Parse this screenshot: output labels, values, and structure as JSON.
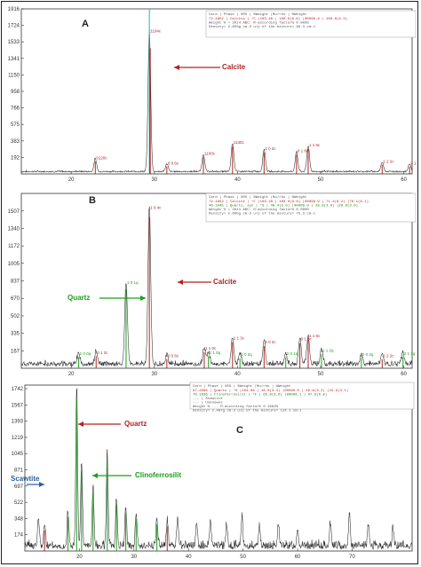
{
  "colors": {
    "pattern_line": "#2b2b2b",
    "calcite": "#b22222",
    "quartz": "#19a019",
    "clinoferrosilit": "#19a019",
    "scawtite": "#3060a0",
    "header_text": "#555555",
    "header_red": "#c02020",
    "header_green": "#208020",
    "axis": "#333333",
    "border_blue": "#4060b0",
    "cyan_peak": "#20b0c0"
  },
  "chart_data": [
    {
      "type": "line",
      "panel_label": "A",
      "xlim": [
        14,
        61
      ],
      "x_ticks": [
        20,
        30,
        40,
        50,
        60
      ],
      "y_ticks": [
        192,
        383,
        575,
        766,
        958,
        1150,
        1341,
        1533,
        1724,
        1916
      ],
      "ylim": [
        0,
        1916
      ],
      "grid": false,
      "annotations": [
        {
          "text": "Calcite",
          "color": "calcite"
        }
      ],
      "info_box": {
        "header": "Card  |  Phase  |  XRS  |  %Weight  |Mu/rho  |  %Weight",
        "lines": [
          "72-1652 | Calcite | *C |103.28 | 100.0(9.6) |00096.9 | 100.0(9.3)",
          "Weight % = 2014 ABC: R-according factor% 0.0000",
          "Density= 2.650g cm-3  u/p of the mixture= 99.3 cm-1"
        ]
      },
      "peaks": [
        {
          "x": 22.9,
          "y": 150,
          "label": "0120c",
          "phase": "calcite"
        },
        {
          "x": 29.4,
          "y": 1620,
          "label": "1104c",
          "phase": "calcite"
        },
        {
          "x": 31.5,
          "y": 90,
          "label": "0 0 6c",
          "phase": "calcite"
        },
        {
          "x": 35.9,
          "y": 200,
          "label": "1100c",
          "phase": "calcite"
        },
        {
          "x": 39.4,
          "y": 330,
          "label": "1130c",
          "phase": "calcite"
        },
        {
          "x": 43.2,
          "y": 260,
          "label": "2 0 2c",
          "phase": "calcite"
        },
        {
          "x": 47.1,
          "y": 230,
          "label": "0 1 8c",
          "phase": "calcite"
        },
        {
          "x": 48.5,
          "y": 300,
          "label": "1 1 6c",
          "phase": "calcite"
        },
        {
          "x": 57.4,
          "y": 110,
          "label": "1 2 2c",
          "phase": "calcite"
        },
        {
          "x": 60.7,
          "y": 90,
          "label": "2 1 4c",
          "phase": "calcite"
        }
      ]
    },
    {
      "type": "line",
      "panel_label": "B",
      "xlim": [
        14,
        61
      ],
      "x_ticks": [
        20,
        30,
        40,
        50,
        60
      ],
      "y_ticks": [
        167,
        335,
        502,
        670,
        837,
        1005,
        1172,
        1340,
        1507
      ],
      "ylim": [
        0,
        1675
      ],
      "grid": false,
      "annotations": [
        {
          "text": "Calcite",
          "color": "calcite"
        },
        {
          "text": "Quartz",
          "color": "quartz"
        }
      ],
      "info_box": {
        "header": "Card  |  Phase  |  XRS  |  %Weight  |Mu/rho  |  %Weight",
        "lines": [
          "72-1652 | Calcite | *C |103.28 | 100.0(9.6) |00096.9 | 71.4(8.2) |70.1(8.1)",
          "46-1045 | Quartz, syn | *S | 48.4(5.0) |00096.0 | 28.6(3.9) |29.9(3.9)",
          "Weight % = 2014 ABC: R-according factor% 0.0000",
          "Density= 2.695g cm-3  u/p of the mixture= 75.3 cm-1"
        ]
      },
      "peaks": [
        {
          "x": 20.9,
          "y": 110,
          "label": "1 0 0q",
          "phase": "quartz"
        },
        {
          "x": 23.0,
          "y": 120,
          "label": "0 1 2c",
          "phase": "calcite"
        },
        {
          "x": 26.6,
          "y": 790,
          "label": "1 0 1q",
          "phase": "quartz"
        },
        {
          "x": 29.4,
          "y": 1510,
          "label": "1 0 4c",
          "phase": "calcite"
        },
        {
          "x": 31.5,
          "y": 90,
          "label": "0 0 6c",
          "phase": "calcite"
        },
        {
          "x": 36.0,
          "y": 160,
          "label": "1 1 0c",
          "phase": "calcite"
        },
        {
          "x": 36.5,
          "y": 120,
          "label": "1 1 0q",
          "phase": "quartz"
        },
        {
          "x": 39.4,
          "y": 260,
          "label": "1 1 3c",
          "phase": "calcite"
        },
        {
          "x": 40.3,
          "y": 100,
          "label": "1 0 2q",
          "phase": "quartz"
        },
        {
          "x": 43.2,
          "y": 220,
          "label": "2 0 2c",
          "phase": "calcite"
        },
        {
          "x": 45.8,
          "y": 110,
          "label": "2 0 1q",
          "phase": "quartz"
        },
        {
          "x": 47.5,
          "y": 250,
          "label": "0 1 8c",
          "phase": "calcite"
        },
        {
          "x": 48.5,
          "y": 280,
          "label": "1 1 6c",
          "phase": "calcite"
        },
        {
          "x": 50.1,
          "y": 140,
          "label": "1 1 2q",
          "phase": "quartz"
        },
        {
          "x": 54.9,
          "y": 100,
          "label": "2 0 2q",
          "phase": "quartz"
        },
        {
          "x": 57.4,
          "y": 90,
          "label": "1 2 2c",
          "phase": "calcite"
        },
        {
          "x": 59.9,
          "y": 110,
          "label": "2 1 1q",
          "phase": "quartz"
        }
      ]
    },
    {
      "type": "line",
      "panel_label": "C",
      "xlim": [
        10,
        81
      ],
      "x_ticks": [
        20,
        30,
        40,
        50,
        60,
        70
      ],
      "y_ticks": [
        174,
        348,
        522,
        697,
        871,
        1045,
        1219,
        1393,
        1567,
        1742
      ],
      "ylim": [
        0,
        1780
      ],
      "grid": false,
      "annotations": [
        {
          "text": "Quartz",
          "color": "calcite"
        },
        {
          "text": "Clinoferrosilit",
          "color": "clinoferrosilit"
        },
        {
          "text": "Scawtite",
          "color": "scawtite"
        }
      ],
      "info_box": {
        "header": "Card  |  Phase  |  XRS  |  %Weight  |Mu/rho  |  %Weight",
        "lines": [
          "87-2096 | Quartz | *S |104.08 | 18.0(3.4) |00096.0 | 16.9(3.2) |15.9(3.1)",
          "70-1836 | Clinoferrosilit | *F | 63.9(8.6) |00096.1 | 47.9(6.8)",
          "  ---   | Scawtite",
          "  ---   | Unknowns",
          "Weight % ... R-according factor% 0.1662%",
          "Density= 2.487g cm-3  u/p of the mixture= 124.1 cm-1"
        ]
      },
      "peaks": [
        {
          "x": 12.5,
          "y": 300,
          "label": "",
          "phase": "other"
        },
        {
          "x": 13.6,
          "y": 230,
          "label": "",
          "phase": "calcite"
        },
        {
          "x": 17.9,
          "y": 380,
          "label": "",
          "phase": "clinoferrosilit"
        },
        {
          "x": 19.5,
          "y": 1720,
          "label": "",
          "phase": "quartz"
        },
        {
          "x": 20.4,
          "y": 900,
          "label": "",
          "phase": "clinoferrosilit"
        },
        {
          "x": 22.5,
          "y": 650,
          "label": "",
          "phase": "clinoferrosilit"
        },
        {
          "x": 25.1,
          "y": 1020,
          "label": "",
          "phase": "clinoferrosilit"
        },
        {
          "x": 26.8,
          "y": 520,
          "label": "",
          "phase": "quartz"
        },
        {
          "x": 28.5,
          "y": 430,
          "label": "",
          "phase": "clinoferrosilit"
        },
        {
          "x": 30.4,
          "y": 360,
          "label": "",
          "phase": "clinoferrosilit"
        },
        {
          "x": 34.2,
          "y": 300,
          "label": "",
          "phase": "clinoferrosilit"
        },
        {
          "x": 36.1,
          "y": 280,
          "label": "",
          "phase": "calcite"
        },
        {
          "x": 38.0,
          "y": 320,
          "label": "",
          "phase": "other"
        },
        {
          "x": 41.5,
          "y": 240,
          "label": "",
          "phase": "other"
        },
        {
          "x": 44.0,
          "y": 260,
          "label": "",
          "phase": "other"
        },
        {
          "x": 47.0,
          "y": 230,
          "label": "",
          "phase": "other"
        },
        {
          "x": 49.8,
          "y": 330,
          "label": "",
          "phase": "other"
        },
        {
          "x": 53.0,
          "y": 210,
          "label": "",
          "phase": "other"
        },
        {
          "x": 56.5,
          "y": 240,
          "label": "",
          "phase": "other"
        },
        {
          "x": 60.0,
          "y": 200,
          "label": "",
          "phase": "other"
        },
        {
          "x": 66.0,
          "y": 250,
          "label": "",
          "phase": "other"
        },
        {
          "x": 69.5,
          "y": 350,
          "label": "",
          "phase": "other"
        },
        {
          "x": 73.0,
          "y": 220,
          "label": "",
          "phase": "other"
        },
        {
          "x": 77.5,
          "y": 200,
          "label": "",
          "phase": "other"
        }
      ]
    }
  ]
}
